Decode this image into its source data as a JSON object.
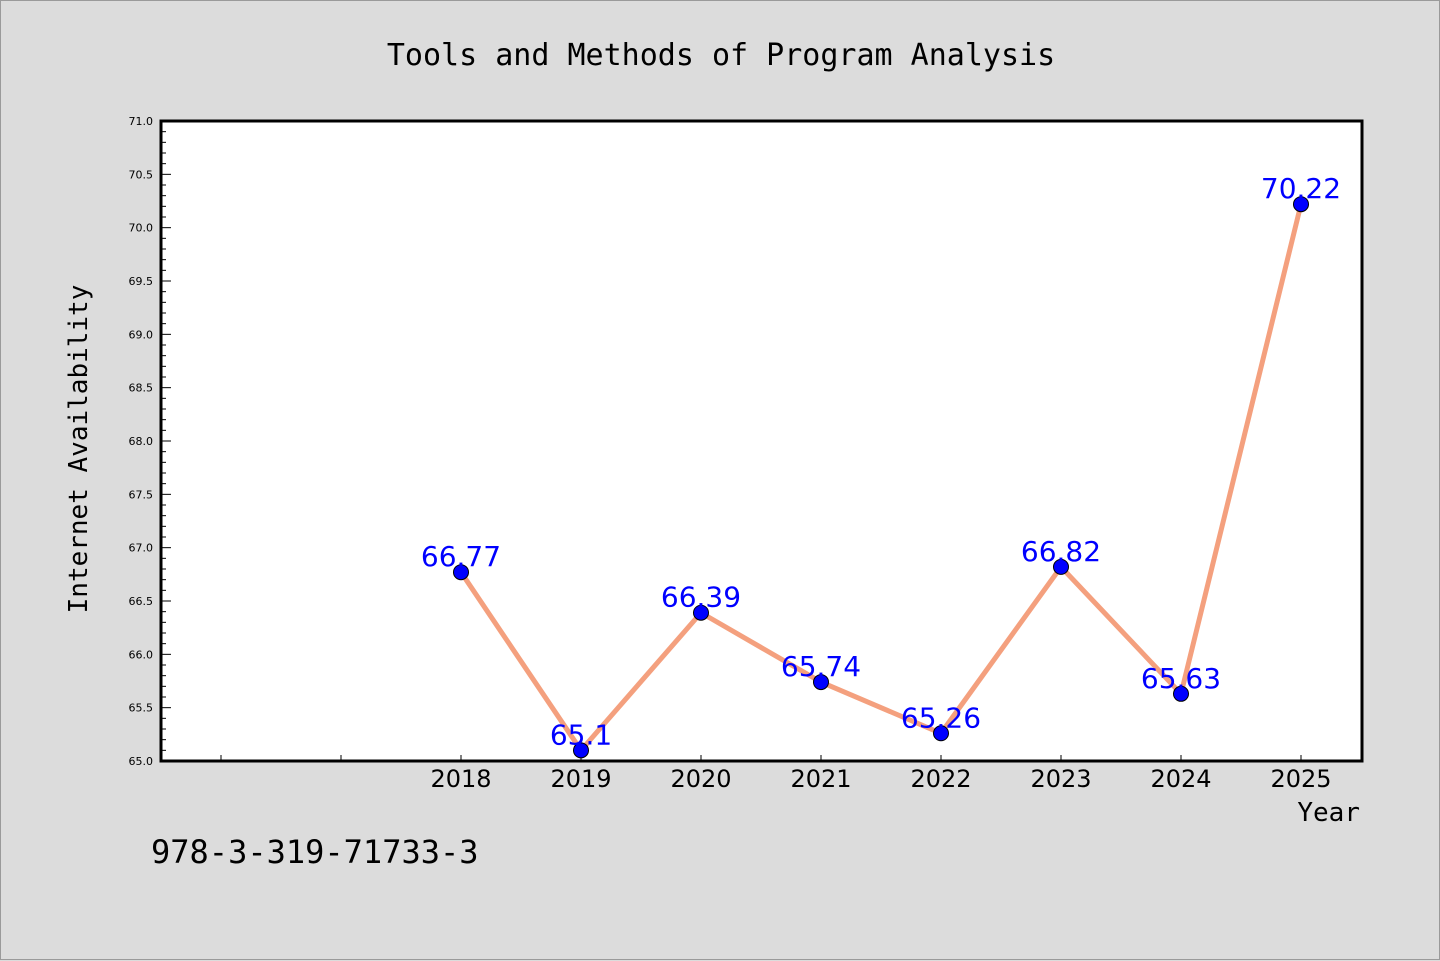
{
  "chart_data": {
    "type": "line",
    "title": "Tools and Methods of Program Analysis",
    "xlabel": "Year",
    "ylabel": "Internet Availability",
    "categories": [
      "2018",
      "2019",
      "2020",
      "2021",
      "2022",
      "2023",
      "2024",
      "2025"
    ],
    "values": [
      66.77,
      65.1,
      66.39,
      65.74,
      65.26,
      66.82,
      65.63,
      70.22
    ],
    "data_labels": [
      "66.77",
      "65.1",
      "66.39",
      "65.74",
      "65.26",
      "66.82",
      "65.63",
      "70.22"
    ],
    "ylim": [
      65.0,
      71.0
    ],
    "y_ticks": [
      "65.0",
      "65.5",
      "66.0",
      "66.5",
      "67.0",
      "67.5",
      "68.0",
      "68.5",
      "69.0",
      "69.5",
      "70.0",
      "70.5",
      "71.0"
    ],
    "grid": false,
    "line_color": "#f4a07e",
    "marker_color": "#0000ff",
    "label_color": "#0000ff"
  },
  "footer_text": "978-3-319-71733-3"
}
